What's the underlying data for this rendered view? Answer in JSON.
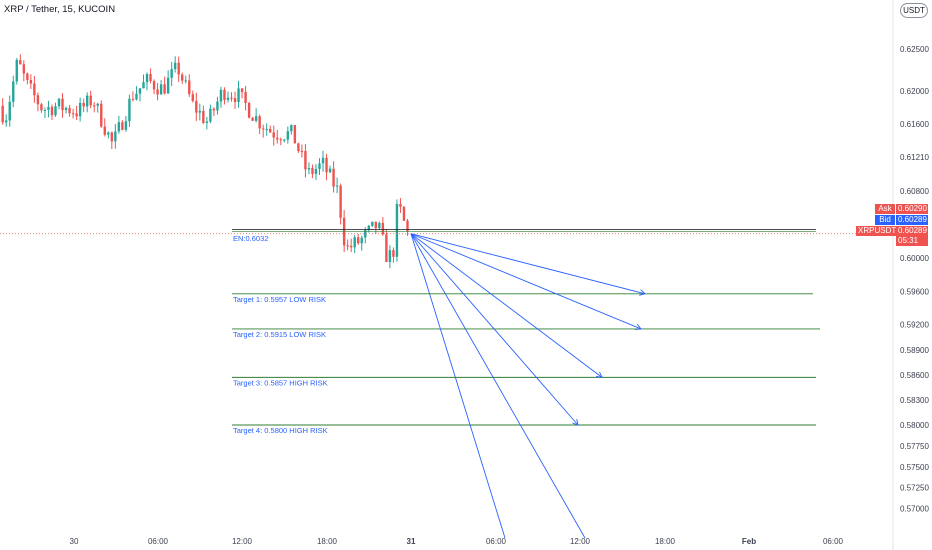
{
  "header": {
    "title": "XRP / Tether, 15, KUCOIN",
    "currency": "USDT"
  },
  "price_tags": {
    "ask_label": "Ask",
    "ask_value": "0.60290",
    "bid_label": "Bid",
    "bid_value": "0.60289",
    "symbol_label": "XRPUSDT",
    "last_value": "0.60289",
    "countdown": "05:31"
  },
  "colors": {
    "up": "#26a69a",
    "down": "#ef5350",
    "target_line": "#2e7d32",
    "entry_line": "#131722",
    "arrow": "#2962ff",
    "ask_tag": "#ef5350",
    "bid_tag": "#2962ff",
    "last_tag": "#ef5350"
  },
  "chart_data": {
    "type": "candlestick",
    "symbol": "XRP / Tether",
    "interval": "15",
    "exchange": "KUCOIN",
    "ylim": [
      0.5695,
      0.6275
    ],
    "x_ticks": [
      "30",
      "06:00",
      "12:00",
      "18:00",
      "31",
      "06:00",
      "12:00",
      "18:00",
      "Feb",
      "06:00"
    ],
    "y_ticks": [
      0.625,
      0.62,
      0.616,
      0.6121,
      0.608,
      0.6,
      0.596,
      0.592,
      0.589,
      0.586,
      0.583,
      0.58,
      0.5775,
      0.575,
      0.5725,
      0.57
    ],
    "candles_summary": {
      "start_close": 0.6182,
      "peak_high": 0.6262,
      "low": 0.5978,
      "last": 0.60289
    },
    "entry": {
      "label": "EN:0.6032",
      "value": 0.6032
    },
    "targets": [
      {
        "label": "Target 1: 0.5957 LOW RISK",
        "value": 0.5957
      },
      {
        "label": "Target 2: 0.5915 LOW RISK",
        "value": 0.5915
      },
      {
        "label": "Target 3: 0.5857 HIGH RISK",
        "value": 0.5857
      },
      {
        "label": "Target 4: 0.5800 HIGH RISK",
        "value": 0.58
      }
    ],
    "current_price": 0.60289
  }
}
